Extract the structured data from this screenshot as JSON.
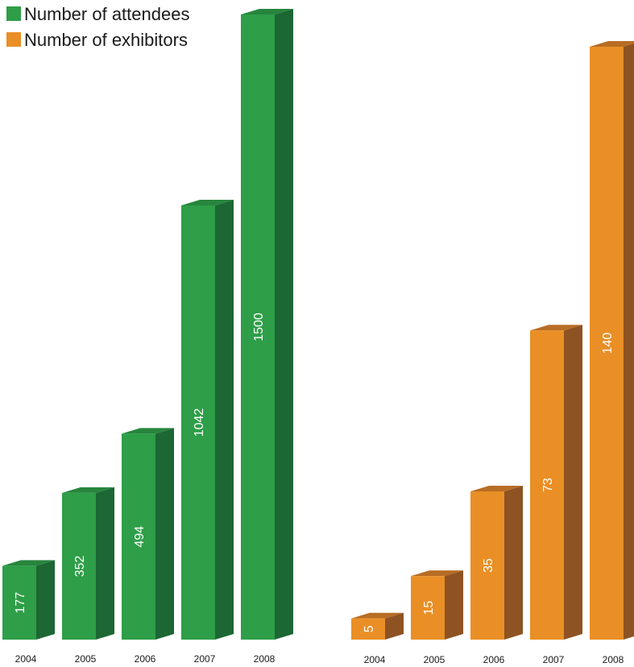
{
  "colors": {
    "attendees_front": "#2e9e48",
    "attendees_top": "#27853d",
    "attendees_side": "#1c6733",
    "exhibitors_front": "#e98f26",
    "exhibitors_top": "#b86d24",
    "exhibitors_side": "#8e5322"
  },
  "legend": [
    {
      "label": "Number of attendees",
      "color": "#2e9e48"
    },
    {
      "label": "Number of exhibitors",
      "color": "#e98f26"
    }
  ],
  "chart_data": [
    {
      "type": "bar",
      "categories": [
        "2004",
        "2005",
        "2006",
        "2007",
        "2008"
      ],
      "series": [
        {
          "name": "Number of attendees",
          "values": [
            177,
            352,
            494,
            1042,
            1500
          ]
        }
      ],
      "data_labels": [
        "177",
        "352",
        "494",
        "1042",
        "1500"
      ],
      "ylim": [
        0,
        1500
      ],
      "grid": false,
      "legend_position": "top-left"
    },
    {
      "type": "bar",
      "categories": [
        "2004",
        "2005",
        "2006",
        "2007",
        "2008"
      ],
      "series": [
        {
          "name": "Number of exhibitors",
          "values": [
            5,
            15,
            35,
            73,
            140
          ]
        }
      ],
      "data_labels": [
        "5",
        "15",
        "35",
        "73",
        "140"
      ],
      "ylim": [
        0,
        140
      ],
      "grid": false,
      "legend_position": "top-left"
    }
  ]
}
